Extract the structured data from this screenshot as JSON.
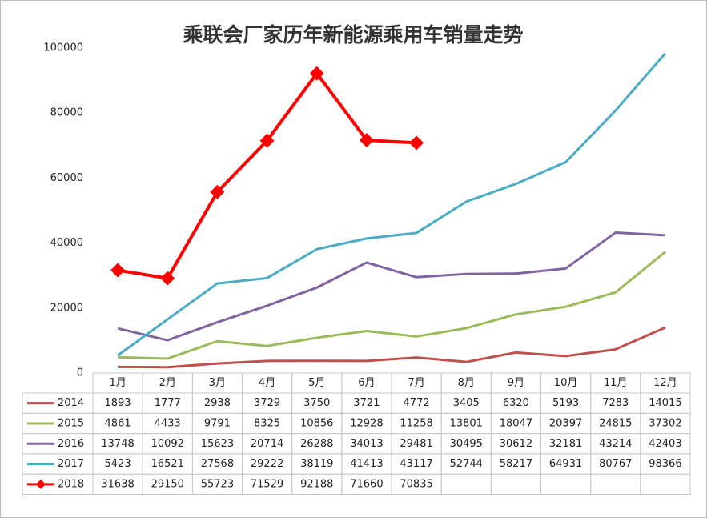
{
  "chart_data": {
    "type": "line",
    "title": "乘联会厂家历年新能源乘用车销量走势",
    "categories": [
      "1月",
      "2月",
      "3月",
      "4月",
      "5月",
      "6月",
      "7月",
      "8月",
      "9月",
      "10月",
      "11月",
      "12月"
    ],
    "series": [
      {
        "name": "2014",
        "color": "#c0504d",
        "values": [
          1893,
          1777,
          2938,
          3729,
          3750,
          3721,
          4772,
          3405,
          6320,
          5193,
          7283,
          14015
        ]
      },
      {
        "name": "2015",
        "color": "#9bbb59",
        "values": [
          4861,
          4433,
          9791,
          8325,
          10856,
          12928,
          11258,
          13801,
          18047,
          20397,
          24815,
          37302
        ]
      },
      {
        "name": "2016",
        "color": "#8064a2",
        "values": [
          13748,
          10092,
          15623,
          20714,
          26288,
          34013,
          29481,
          30495,
          30612,
          32181,
          43214,
          42403
        ]
      },
      {
        "name": "2017",
        "color": "#4bacc6",
        "values": [
          5423,
          16521,
          27568,
          29222,
          38119,
          41413,
          43117,
          52744,
          58217,
          64931,
          80767,
          98366
        ]
      },
      {
        "name": "2018",
        "color": "#ff0000",
        "marker": "diamond",
        "values": [
          31638,
          29150,
          55723,
          71529,
          92188,
          71660,
          70835,
          null,
          null,
          null,
          null,
          null
        ]
      }
    ],
    "ylim": [
      0,
      100000
    ],
    "yticks": [
      0,
      20000,
      40000,
      60000,
      80000,
      100000
    ],
    "data_table": true
  }
}
